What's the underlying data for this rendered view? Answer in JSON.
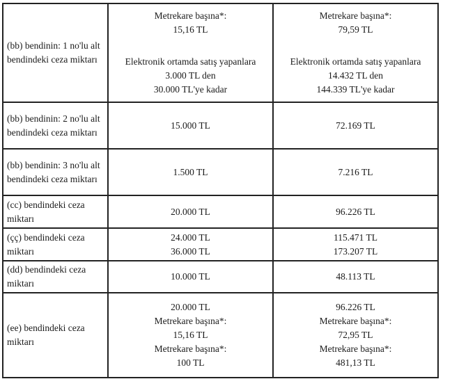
{
  "rows": [
    {
      "label": "(bb) bendinin: 1 no'lu alt bendindeki ceza miktarı",
      "old": [
        "Metrekare başına*:",
        "15,16 TL",
        "Elektronik ortamda satış yapanlara",
        "3.000 TL den",
        "30.000 TL'ye kadar"
      ],
      "new": [
        "Metrekare başına*:",
        "79,59 TL",
        "Elektronik ortamda satış yapanlara",
        "14.432 TL den",
        "144.339 TL'ye kadar"
      ]
    },
    {
      "label": "(bb) bendinin: 2 no'lu alt bendindeki ceza miktarı",
      "old": [
        "15.000 TL"
      ],
      "new": [
        "72.169 TL"
      ]
    },
    {
      "label": "(bb) bendinin: 3 no'lu alt bendindeki ceza miktarı",
      "old": [
        "1.500 TL"
      ],
      "new": [
        "7.216 TL"
      ]
    },
    {
      "label": "(cc) bendindeki ceza miktarı",
      "old": [
        "20.000 TL"
      ],
      "new": [
        "96.226 TL"
      ]
    },
    {
      "label": "(çç) bendindeki ceza miktarı",
      "old": [
        "24.000 TL",
        "36.000 TL"
      ],
      "new": [
        "115.471 TL",
        "173.207 TL"
      ]
    },
    {
      "label": "(dd) bendindeki ceza miktarı",
      "old": [
        "10.000 TL"
      ],
      "new": [
        "48.113 TL"
      ]
    },
    {
      "label": "(ee) bendindeki ceza miktarı",
      "old": [
        "20.000 TL",
        "Metrekare başına*:",
        "15,16 TL",
        "Metrekare başına*:",
        "100 TL"
      ],
      "new": [
        "96.226 TL",
        "Metrekare başına*:",
        "72,95 TL",
        "Metrekare başına*:",
        "481,13 TL"
      ]
    }
  ]
}
